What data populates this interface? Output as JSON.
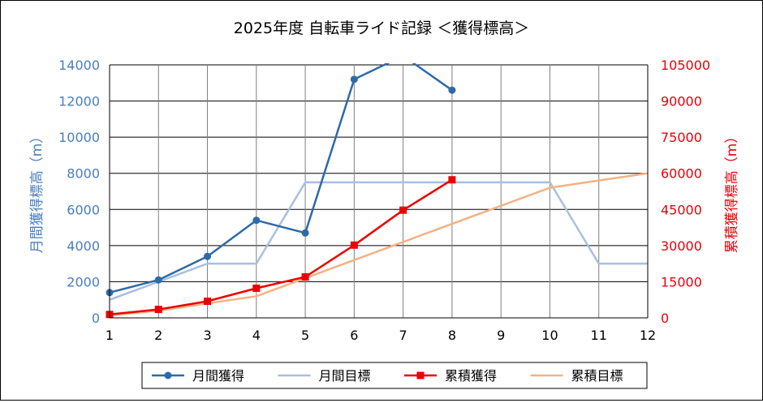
{
  "chart_data": {
    "type": "line",
    "title": "2025年度 自転車ライド記録 ＜獲得標高＞",
    "x": [
      1,
      2,
      3,
      4,
      5,
      6,
      7,
      8,
      9,
      10,
      11,
      12
    ],
    "xlim": [
      1,
      12
    ],
    "y_left": {
      "label": "月間獲得標高（m）",
      "lim": [
        0,
        14000
      ],
      "ticks": [
        0,
        2000,
        4000,
        6000,
        8000,
        10000,
        12000,
        14000
      ],
      "color": "#4a7ebb"
    },
    "y_right": {
      "label": "累積獲得標高（m）",
      "lim": [
        0,
        105000
      ],
      "ticks": [
        0,
        15000,
        30000,
        45000,
        60000,
        75000,
        90000,
        105000
      ],
      "color": "#e8000b"
    },
    "grid": true,
    "legend_position": "bottom",
    "series": [
      {
        "name": "月間獲得",
        "axis": "left",
        "color": "#2e6aa8",
        "marker": "circle",
        "x": [
          1,
          2,
          3,
          4,
          5,
          6,
          7,
          8
        ],
        "values": [
          1400,
          2100,
          3400,
          5400,
          4700,
          13200,
          14500,
          12600
        ]
      },
      {
        "name": "月間目標",
        "axis": "left",
        "color": "#a9bfe0",
        "marker": "none",
        "x": [
          1,
          2,
          3,
          4,
          5,
          6,
          7,
          8,
          9,
          10,
          11,
          12
        ],
        "values": [
          1000,
          2000,
          3000,
          3000,
          7500,
          7500,
          7500,
          7500,
          7500,
          7500,
          3000,
          3000
        ]
      },
      {
        "name": "累積獲得",
        "axis": "right",
        "color": "#ee0000",
        "marker": "square",
        "x": [
          1,
          2,
          3,
          4,
          5,
          6,
          7,
          8
        ],
        "values": [
          1400,
          3500,
          6900,
          12300,
          17000,
          30200,
          44700,
          57300
        ]
      },
      {
        "name": "累積目標",
        "axis": "right",
        "color": "#f4b183",
        "marker": "none",
        "x": [
          1,
          2,
          3,
          4,
          5,
          6,
          7,
          8,
          9,
          10,
          11,
          12
        ],
        "values": [
          1000,
          3000,
          6000,
          9000,
          16500,
          24000,
          31500,
          39000,
          46500,
          54000,
          57000,
          60000
        ]
      }
    ]
  }
}
